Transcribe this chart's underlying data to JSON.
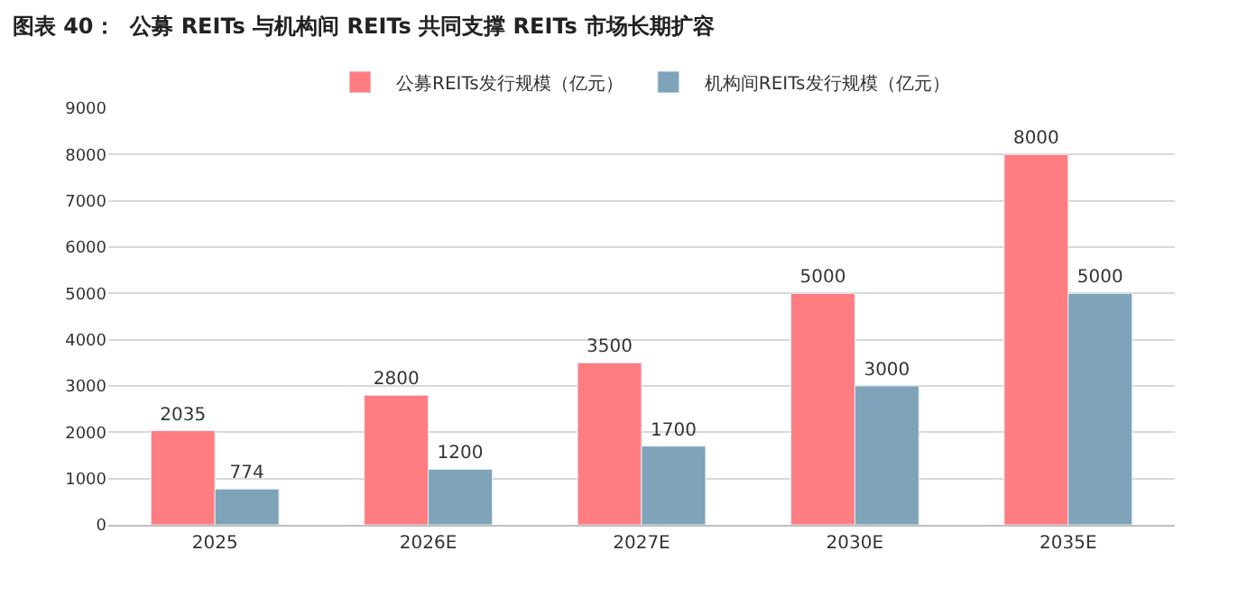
{
  "chart_data": {
    "type": "bar",
    "title": "图表 40：  公募 REITs 与机构间 REITs 共同支撑 REITs 市场长期扩容",
    "categories": [
      "2025",
      "2026E",
      "2027E",
      "2030E",
      "2035E"
    ],
    "series": [
      {
        "name": "公募REITs发行规模（亿元）",
        "color": "#ff7c80",
        "values": [
          2035,
          2800,
          3500,
          5000,
          8000
        ]
      },
      {
        "name": "机构间REITs发行规模（亿元）",
        "color": "#7fa3b8",
        "values": [
          774,
          1200,
          1700,
          3000,
          5000
        ]
      }
    ],
    "ylim": [
      0,
      9000
    ],
    "yticks": [
      0,
      1000,
      2000,
      3000,
      4000,
      5000,
      6000,
      7000,
      8000,
      9000
    ],
    "grid": "y",
    "legend": "top",
    "data_labels": true
  }
}
